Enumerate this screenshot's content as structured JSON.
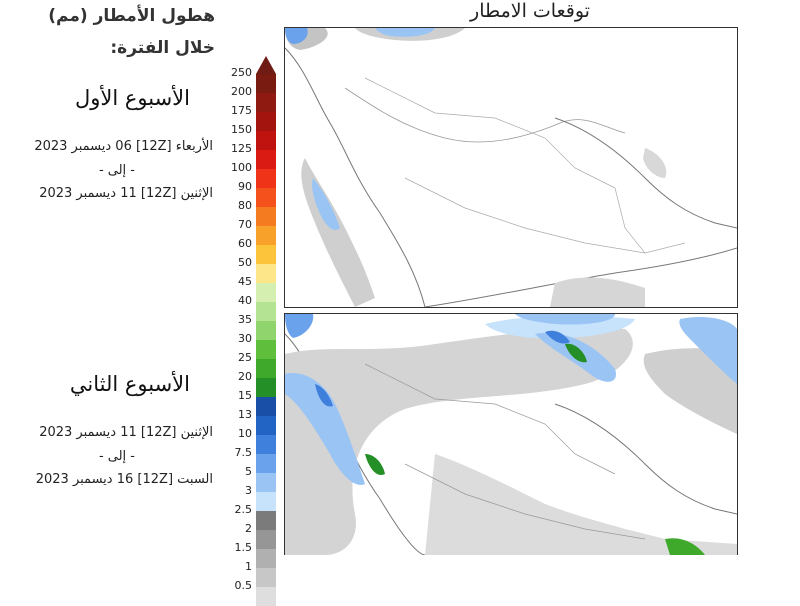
{
  "header": {
    "title": "توقعات الامطار"
  },
  "legend": {
    "subtitle_line1": "هطول الأمطار (مم)",
    "subtitle_line2": "خلال الفترة:",
    "scale": [
      {
        "label": "250",
        "color": "#7a1b12"
      },
      {
        "label": "200",
        "color": "#8e1a12"
      },
      {
        "label": "175",
        "color": "#a3140f"
      },
      {
        "label": "150",
        "color": "#c0130f"
      },
      {
        "label": "125",
        "color": "#d91b13"
      },
      {
        "label": "100",
        "color": "#ee3318"
      },
      {
        "label": "90",
        "color": "#f4511d"
      },
      {
        "label": "80",
        "color": "#f57b20"
      },
      {
        "label": "70",
        "color": "#f8a12a"
      },
      {
        "label": "60",
        "color": "#fcc43a"
      },
      {
        "label": "50",
        "color": "#fde58a"
      },
      {
        "label": "45",
        "color": "#d5efb1"
      },
      {
        "label": "40",
        "color": "#b4e394"
      },
      {
        "label": "35",
        "color": "#8fd46c"
      },
      {
        "label": "30",
        "color": "#5fbe3c"
      },
      {
        "label": "25",
        "color": "#3ea92a"
      },
      {
        "label": "20",
        "color": "#238f26"
      },
      {
        "label": "15",
        "color": "#1a4fa8"
      },
      {
        "label": "13",
        "color": "#2264c4"
      },
      {
        "label": "10",
        "color": "#3f80dd"
      },
      {
        "label": "7.5",
        "color": "#6aa3ec"
      },
      {
        "label": "5",
        "color": "#99c4f4"
      },
      {
        "label": "3",
        "color": "#c7e2fb"
      },
      {
        "label": "2.5",
        "color": "#7b7b7b"
      },
      {
        "label": "2",
        "color": "#969696"
      },
      {
        "label": "1.5",
        "color": "#b0b0b0"
      },
      {
        "label": "1",
        "color": "#c7c7c7"
      },
      {
        "label": "0.5",
        "color": "#dedede"
      }
    ]
  },
  "periods": [
    {
      "title": "الأسبوع الأول",
      "from": "الأربعاء [12Z] 06 ديسمبر 2023",
      "to_word": "- إلى -",
      "to": "الإثنين [12Z] 11 ديسمبر 2023"
    },
    {
      "title": "الأسبوع الثاني",
      "from": "الإثنين [12Z] 11 ديسمبر 2023",
      "to_word": "- إلى -",
      "to": "السبت [12Z] 16 ديسمبر 2023"
    }
  ],
  "maps": [
    {
      "name": "week-1-map"
    },
    {
      "name": "week-2-map"
    }
  ]
}
